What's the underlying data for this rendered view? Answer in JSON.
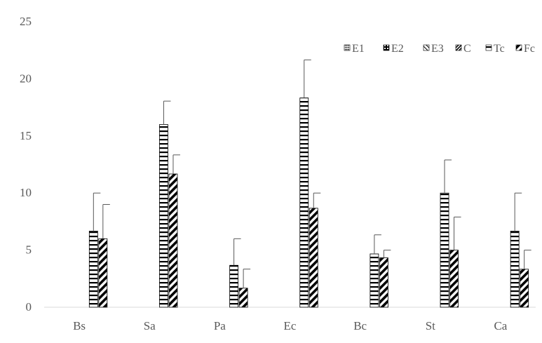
{
  "chart_data": {
    "type": "bar",
    "categories": [
      "Bs",
      "Sa",
      "Pa",
      "Ec",
      "Bc",
      "St",
      "Ca"
    ],
    "ylim": [
      0,
      25
    ],
    "yticks": [
      0,
      5,
      10,
      15,
      20,
      25
    ],
    "legend_position": "top-right",
    "grid": false,
    "series": [
      {
        "name": "E1",
        "pattern": "dots",
        "values": [
          0,
          0,
          0,
          0,
          0,
          0,
          0
        ],
        "errors": [
          0,
          0,
          0,
          0,
          0,
          0,
          0
        ]
      },
      {
        "name": "E2",
        "pattern": "checker",
        "values": [
          0,
          0,
          0,
          0,
          0,
          0,
          0
        ],
        "errors": [
          0,
          0,
          0,
          0,
          0,
          0,
          0
        ]
      },
      {
        "name": "E3",
        "pattern": "diag-light",
        "values": [
          0,
          0,
          0,
          0,
          0,
          0,
          0
        ],
        "errors": [
          0,
          0,
          0,
          0,
          0,
          0,
          0
        ]
      },
      {
        "name": "C",
        "pattern": "diag-dense",
        "values": [
          0,
          0,
          0,
          0,
          0,
          0,
          0
        ],
        "errors": [
          0,
          0,
          0,
          0,
          0,
          0,
          0
        ]
      },
      {
        "name": "Tc",
        "pattern": "hstripes",
        "values": [
          6.67,
          16,
          3.67,
          18.33,
          4.67,
          10,
          6.67
        ],
        "errors": [
          3.33,
          2.05,
          2.33,
          3.33,
          1.67,
          2.9,
          3.33
        ]
      },
      {
        "name": "Fc",
        "pattern": "diag-bold",
        "values": [
          6,
          11.67,
          1.67,
          8.67,
          4.33,
          5,
          3.33
        ],
        "errors": [
          3,
          1.67,
          1.67,
          1.33,
          0.67,
          2.9,
          1.67
        ]
      }
    ],
    "colors": {
      "axis": "#d9d9d9",
      "text": "#595959",
      "bar_stroke": "#000000",
      "error": "#595959"
    }
  }
}
